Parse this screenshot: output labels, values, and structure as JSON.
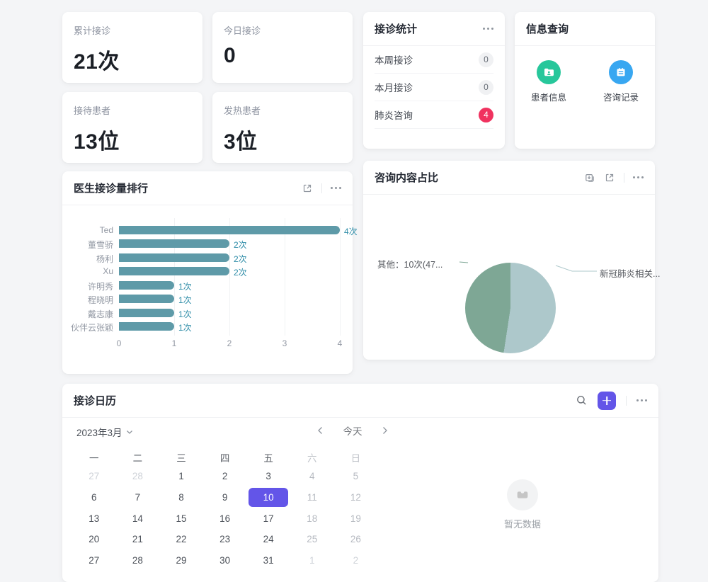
{
  "page": {
    "background": "#f4f5f7",
    "accent_purple": "#6355e8",
    "badge_red": "#f0325f"
  },
  "stat_cards": [
    {
      "label": "累计接诊",
      "value": "21次"
    },
    {
      "label": "今日接诊",
      "value": "0"
    },
    {
      "label": "接待患者",
      "value": "13位"
    },
    {
      "label": "发热患者",
      "value": "3位"
    }
  ],
  "stats_panel": {
    "title": "接诊统计",
    "rows": [
      {
        "label": "本周接诊",
        "badge": "0",
        "badge_style": "gray"
      },
      {
        "label": "本月接诊",
        "badge": "0",
        "badge_style": "gray"
      },
      {
        "label": "肺炎咨询",
        "badge": "4",
        "badge_style": "red"
      }
    ]
  },
  "info_panel": {
    "title": "信息查询",
    "items": [
      {
        "label": "患者信息",
        "icon": "patient-folder-icon",
        "color": "#27c79b"
      },
      {
        "label": "咨询记录",
        "icon": "consult-record-icon",
        "color": "#38a7f1"
      }
    ]
  },
  "bar_card": {
    "title": "医生接诊量排行"
  },
  "pie_card": {
    "title": "咨询内容占比"
  },
  "calendar": {
    "title": "接诊日历",
    "month_label": "2023年3月",
    "today_label": "今天",
    "weekdays": [
      "一",
      "二",
      "三",
      "四",
      "五",
      "六",
      "日"
    ],
    "weeks": [
      [
        {
          "t": "27",
          "m": 1
        },
        {
          "t": "28",
          "m": 1
        },
        {
          "t": "1"
        },
        {
          "t": "2"
        },
        {
          "t": "3"
        },
        {
          "t": "4",
          "w": 1
        },
        {
          "t": "5",
          "w": 1
        }
      ],
      [
        {
          "t": "6"
        },
        {
          "t": "7"
        },
        {
          "t": "8"
        },
        {
          "t": "9"
        },
        {
          "t": "10",
          "sel": 1
        },
        {
          "t": "11",
          "w": 1
        },
        {
          "t": "12",
          "w": 1
        }
      ],
      [
        {
          "t": "13"
        },
        {
          "t": "14"
        },
        {
          "t": "15"
        },
        {
          "t": "16"
        },
        {
          "t": "17"
        },
        {
          "t": "18",
          "w": 1
        },
        {
          "t": "19",
          "w": 1
        }
      ],
      [
        {
          "t": "20"
        },
        {
          "t": "21"
        },
        {
          "t": "22"
        },
        {
          "t": "23"
        },
        {
          "t": "24"
        },
        {
          "t": "25",
          "w": 1
        },
        {
          "t": "26",
          "w": 1
        }
      ],
      [
        {
          "t": "27"
        },
        {
          "t": "28"
        },
        {
          "t": "29"
        },
        {
          "t": "30"
        },
        {
          "t": "31"
        },
        {
          "t": "1",
          "m": 1
        },
        {
          "t": "2",
          "m": 1
        }
      ]
    ],
    "selected_day": "10",
    "empty_text": "暂无数据"
  },
  "chart_data": [
    {
      "type": "bar",
      "orientation": "horizontal",
      "title": "医生接诊量排行",
      "categories": [
        "Ted",
        "董雪骄",
        "杨利",
        "Xu",
        "许明秀",
        "程晓明",
        "戴志康",
        "伙伴云张颖"
      ],
      "values": [
        4,
        2,
        2,
        2,
        1,
        1,
        1,
        1
      ],
      "value_labels": [
        "4次",
        "2次",
        "2次",
        "2次",
        "1次",
        "1次",
        "1次",
        "1次"
      ],
      "xlim": [
        0,
        4
      ],
      "x_ticks": [
        "0",
        "1",
        "2",
        "3",
        "4"
      ],
      "bar_color": "#5e9aa8",
      "value_label_color": "#2f8da8",
      "grid": true,
      "legend": false
    },
    {
      "type": "pie",
      "title": "咨询内容占比",
      "slices": [
        {
          "label": "其他：10次(47...",
          "value": 10,
          "percent": 47.6,
          "color": "#7ea795",
          "label_side": "left"
        },
        {
          "label": "新冠肺炎相关...",
          "value": 11,
          "percent": 52.4,
          "color": "#adc8cb",
          "label_side": "right"
        }
      ],
      "legend": false
    }
  ]
}
